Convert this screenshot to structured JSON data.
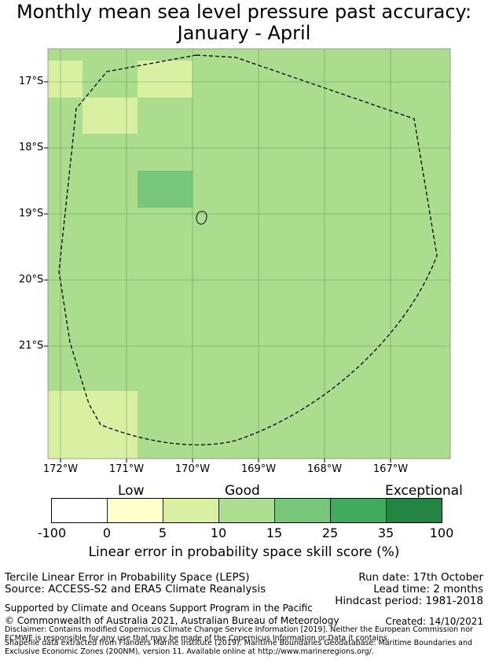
{
  "title": {
    "line1": "Monthly mean sea level pressure past accuracy:",
    "line2": "January - April"
  },
  "map": {
    "lat_labels": [
      "17°S",
      "18°S",
      "19°S",
      "20°S",
      "21°S"
    ],
    "lon_labels": [
      "172°W",
      "171°W",
      "170°W",
      "169°W",
      "168°W",
      "167°W"
    ],
    "colors": {
      "good_light": "#acdd8e",
      "low_light": "#d9f0a3",
      "good_dark": "#78c679",
      "boundary": "#000000"
    }
  },
  "colorbar": {
    "categories": [
      "Low",
      "Good",
      "Exceptional"
    ],
    "ticks": [
      "-100",
      "0",
      "5",
      "10",
      "15",
      "25",
      "35",
      "100"
    ],
    "bins": [
      {
        "color": "#ffffff"
      },
      {
        "color": "#ffffcc"
      },
      {
        "color": "#d9f0a3"
      },
      {
        "color": "#addd8e"
      },
      {
        "color": "#78c679"
      },
      {
        "color": "#41ab5d"
      },
      {
        "color": "#238443"
      }
    ],
    "title": "Linear error in probability space skill score (%)"
  },
  "info": {
    "left1": "Tercile Linear Error in Probability Space (LEPS)",
    "left2": "Source: ACCESS-S2 and ERA5 Climate Reanalysis",
    "right1": "Run date: 17th October",
    "right2": "Lead time: 2 months",
    "right3": "Hindcast period: 1981-2018",
    "supported": "Supported by Climate and Oceans Support Program in the Pacific",
    "copyright": "© Commonwealth of Australia 2021, Australian Bureau of Meteorology",
    "created": "Created: 14/10/2021",
    "disclaimer1": "Disclaimer: Contains modified Copernicus Climate Change Service Information [2019]. Neither the European Commission nor",
    "disclaimer2": "ECMWF is responsible for any use that may be made of the Copernicus Information or Data it contains.",
    "shapefile1": "Shapefile data extracted from Flanders Marine Institute (2019). Maritime Boundaries Geodatabase: Maritime Boundaries and",
    "shapefile2": "Exclusive Economic Zones (200NM), version 11. Available online at http://www.marineregions.org/."
  }
}
